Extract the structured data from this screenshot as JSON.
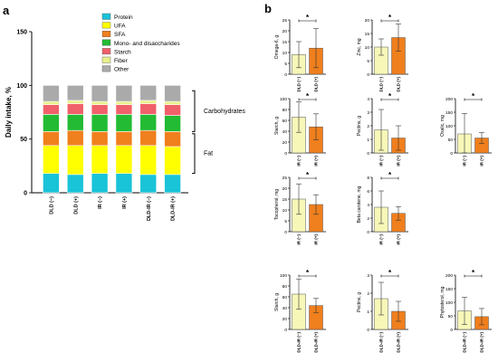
{
  "figure": {
    "panel_a_label": "a",
    "panel_b_label": "b",
    "colors": {
      "Protein": "#19c3d8",
      "UFA": "#ffff00",
      "SFA": "#f07f1d",
      "Mono- and disaccharides": "#22bb33",
      "Starch": "#f0606a",
      "Fiber": "#e8f08a",
      "Other": "#aaaaaa",
      "bar_light": "#f7f7b8",
      "bar_orange": "#f07f1d"
    }
  },
  "chart_data": [
    {
      "type": "bar",
      "stacked": true,
      "panel": "a",
      "ylabel": "Daily intake, %",
      "ylim": [
        0,
        150
      ],
      "yticks": [
        0,
        50,
        100,
        150
      ],
      "categories": [
        "DLD (−)",
        "DLD (+)",
        "IR (−)",
        "IR (+)",
        "DLD-IR (−)",
        "DLD-IR (+)"
      ],
      "legend": [
        "Protein",
        "UFA",
        "SFA",
        "Mono- and disaccharides",
        "Starch",
        "Fiber",
        "Other"
      ],
      "series": [
        {
          "name": "Protein",
          "values": [
            18,
            17,
            18,
            18,
            17,
            17
          ]
        },
        {
          "name": "UFA",
          "values": [
            26,
            27,
            26,
            26,
            27,
            26
          ]
        },
        {
          "name": "SFA",
          "values": [
            13,
            14,
            13,
            13,
            14,
            14
          ]
        },
        {
          "name": "Mono- and disaccharides",
          "values": [
            16,
            15,
            16,
            16,
            15,
            15
          ]
        },
        {
          "name": "Starch",
          "values": [
            9,
            10,
            9,
            9,
            10,
            10
          ]
        },
        {
          "name": "Fiber",
          "values": [
            3,
            3,
            3,
            3,
            3,
            3
          ]
        },
        {
          "name": "Other",
          "values": [
            15,
            14,
            15,
            15,
            14,
            15
          ]
        }
      ],
      "annotations": [
        "Carbohydrates",
        "Fat"
      ]
    },
    {
      "type": "bar",
      "panel": "b",
      "ylabel": "Omega-6, g",
      "ylim": [
        0,
        25
      ],
      "yticks": [
        0,
        5,
        10,
        15,
        20,
        25
      ],
      "categories": [
        "DLD (−)",
        "DLD (+)"
      ],
      "values": [
        9,
        12
      ],
      "errors": [
        6,
        9
      ],
      "significance": "*"
    },
    {
      "type": "bar",
      "panel": "b",
      "ylabel": "Zinc, mg",
      "ylim": [
        0,
        20
      ],
      "yticks": [
        0,
        5,
        10,
        15,
        20
      ],
      "categories": [
        "DLD (−)",
        "DLD (+)"
      ],
      "values": [
        10,
        13.5
      ],
      "errors": [
        3,
        5
      ],
      "significance": "*"
    },
    {
      "type": "bar",
      "panel": "b",
      "ylabel": "Starch, g",
      "ylim": [
        0,
        100
      ],
      "yticks": [
        0,
        20,
        40,
        60,
        80,
        100
      ],
      "categories": [
        "IR (−)",
        "IR (+)"
      ],
      "values": [
        66,
        48
      ],
      "errors": [
        28,
        24
      ],
      "significance": "*"
    },
    {
      "type": "bar",
      "panel": "b",
      "ylabel": "Pectins, g",
      "ylim": [
        0,
        4
      ],
      "yticks": [
        0,
        1,
        2,
        3,
        4
      ],
      "categories": [
        "IR (−)",
        "IR (+)"
      ],
      "values": [
        1.7,
        1.1
      ],
      "errors": [
        1.5,
        0.9
      ],
      "significance": "*"
    },
    {
      "type": "bar",
      "panel": "b",
      "ylabel": "Oxalic, mg",
      "ylim": [
        0,
        200
      ],
      "yticks": [
        0,
        50,
        100,
        150,
        200
      ],
      "categories": [
        "IR (−)",
        "IR (+)"
      ],
      "values": [
        70,
        55
      ],
      "errors": [
        75,
        20
      ],
      "significance": "*"
    },
    {
      "type": "bar",
      "panel": "b",
      "ylabel": "Tocopherol, mg",
      "ylim": [
        0,
        25
      ],
      "yticks": [
        0,
        5,
        10,
        15,
        20,
        25
      ],
      "categories": [
        "IR (−)",
        "IR (+)"
      ],
      "values": [
        15,
        12.5
      ],
      "errors": [
        7,
        4.5
      ],
      "significance": "*"
    },
    {
      "type": "bar",
      "panel": "b",
      "ylabel": "Beta carotene, mg",
      "ylim": [
        0,
        8
      ],
      "yticks": [
        0,
        2,
        4,
        6,
        8
      ],
      "categories": [
        "IR (−)",
        "IR (+)"
      ],
      "values": [
        3.6,
        2.7
      ],
      "errors": [
        2.4,
        1
      ],
      "significance": "*"
    },
    {
      "type": "bar",
      "panel": "b",
      "ylabel": "Starch, g",
      "ylim": [
        0,
        100
      ],
      "yticks": [
        0,
        20,
        40,
        60,
        80,
        100
      ],
      "categories": [
        "DLD-IR (−)",
        "DLD-IR (+)"
      ],
      "values": [
        65,
        44
      ],
      "errors": [
        28,
        13
      ],
      "significance": "*"
    },
    {
      "type": "bar",
      "panel": "b",
      "ylabel": "Pectins, g",
      "ylim": [
        0,
        3
      ],
      "yticks": [
        0,
        1,
        2,
        3
      ],
      "categories": [
        "DLD-IR (−)",
        "DLD-IR (+)"
      ],
      "values": [
        1.7,
        1.0
      ],
      "errors": [
        0.9,
        0.55
      ],
      "significance": "*"
    },
    {
      "type": "bar",
      "panel": "b",
      "ylabel": "Phytosterol, mg",
      "ylim": [
        0,
        200
      ],
      "yticks": [
        0,
        50,
        100,
        150,
        200
      ],
      "categories": [
        "DLD-IR (−)",
        "DLD-IR (+)"
      ],
      "values": [
        68,
        47
      ],
      "errors": [
        50,
        30
      ],
      "significance": "*"
    }
  ]
}
